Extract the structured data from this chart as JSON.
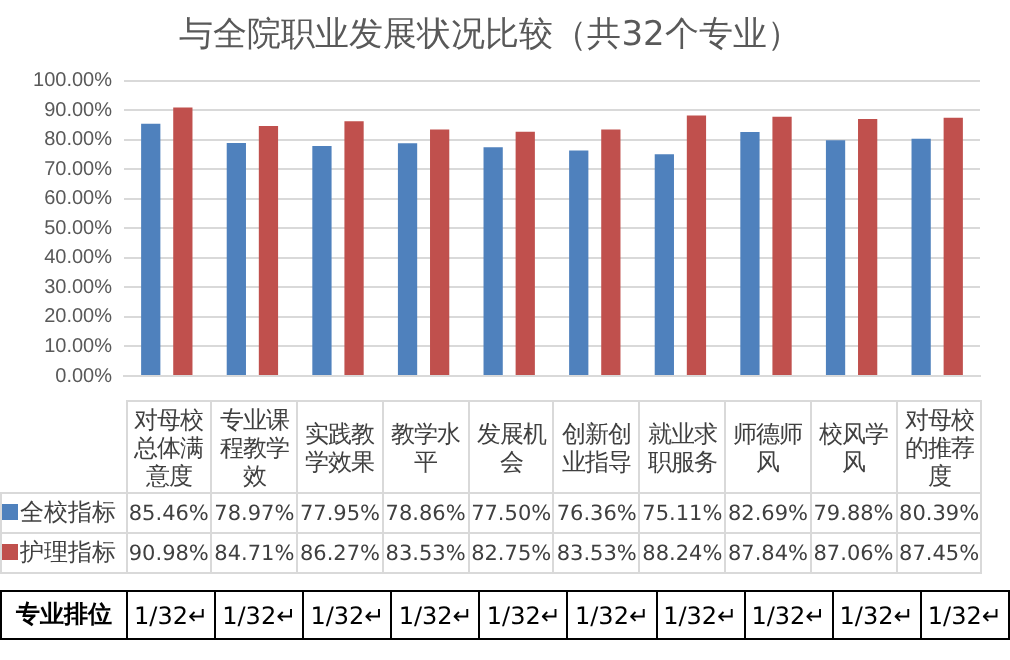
{
  "chart_data": {
    "type": "bar",
    "title": "与全院职业发展状况比较（共32个专业）",
    "categories": [
      "对母校总体满意度",
      "专业课程教学效",
      "实践教学效果",
      "教学水平",
      "发展机会",
      "创新创业指导",
      "就业求职服务",
      "师德师风",
      "校风学风",
      "对母校的推荐度"
    ],
    "series": [
      {
        "name": "全校指标",
        "color": "#4f81bd",
        "values": [
          85.46,
          78.97,
          77.95,
          78.86,
          77.5,
          76.36,
          75.11,
          82.69,
          79.88,
          80.39
        ],
        "value_labels": [
          "85.46%",
          "78.97%",
          "77.95%",
          "78.86%",
          "77.50%",
          "76.36%",
          "75.11%",
          "82.69%",
          "79.88%",
          "80.39%"
        ]
      },
      {
        "name": "护理指标",
        "color": "#c0504d",
        "values": [
          90.98,
          84.71,
          86.27,
          83.53,
          82.75,
          83.53,
          88.24,
          87.84,
          87.06,
          87.45
        ],
        "value_labels": [
          "90.98%",
          "84.71%",
          "86.27%",
          "83.53%",
          "82.75%",
          "83.53%",
          "88.24%",
          "87.84%",
          "87.06%",
          "87.45%"
        ]
      }
    ],
    "ylim": [
      0,
      100
    ],
    "yticks": [
      {
        "value": 0,
        "label": "0.00%"
      },
      {
        "value": 10,
        "label": "10.00%"
      },
      {
        "value": 20,
        "label": "20.00%"
      },
      {
        "value": 30,
        "label": "30.00%"
      },
      {
        "value": 40,
        "label": "40.00%"
      },
      {
        "value": 50,
        "label": "50.00%"
      },
      {
        "value": 60,
        "label": "60.00%"
      },
      {
        "value": 70,
        "label": "70.00%"
      },
      {
        "value": 80,
        "label": "80.00%"
      },
      {
        "value": 90,
        "label": "90.00%"
      },
      {
        "value": 100,
        "label": "100.00%"
      }
    ],
    "grid": "y",
    "legend": "bottom",
    "annotations": [
      "专业排位",
      "1/32↵",
      "1/32↵",
      "1/32↵",
      "1/32↵",
      "1/32↵",
      "1/32↵",
      "1/32↵",
      "1/32↵",
      "1/32↵",
      "1/32↵"
    ]
  }
}
